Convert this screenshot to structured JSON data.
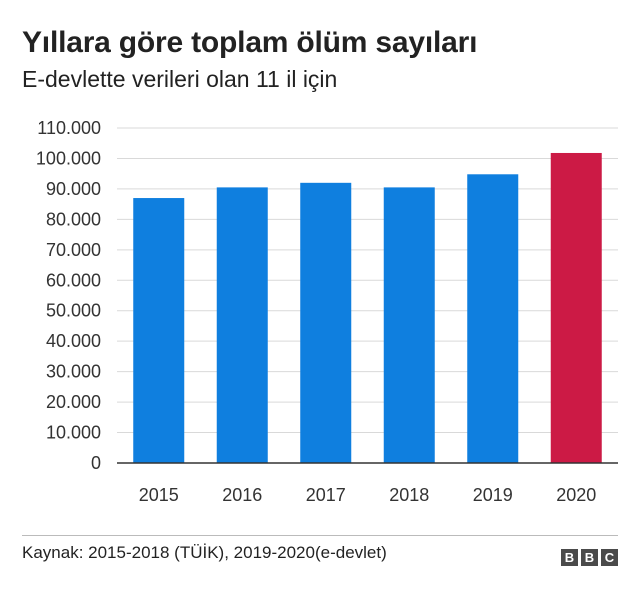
{
  "header": {
    "title": "Yıllara göre toplam ölüm sayıları",
    "subtitle": "E-devlette verileri olan 11 il için"
  },
  "chart_data": {
    "type": "bar",
    "categories": [
      "2015",
      "2016",
      "2017",
      "2018",
      "2019",
      "2020"
    ],
    "values": [
      87000,
      90500,
      92000,
      90500,
      94800,
      101800
    ],
    "ylim": [
      0,
      110000
    ],
    "yticks": [
      0,
      10000,
      20000,
      30000,
      40000,
      50000,
      60000,
      70000,
      80000,
      90000,
      100000,
      110000
    ],
    "ytick_labels": [
      "0",
      "10.000",
      "20.000",
      "30.000",
      "40.000",
      "50.000",
      "60.000",
      "70.000",
      "80.000",
      "90.000",
      "100.000",
      "110.000"
    ],
    "grid": true,
    "colors": {
      "default": "#0f7fdf",
      "highlight": "#cc1a45",
      "grid": "#d9d9d9",
      "axis": "#333333"
    },
    "highlight_index": 5
  },
  "footer": {
    "source": "Kaynak: 2015-2018 (TÜİK), 2019-2020(e-devlet)",
    "logo_letters": [
      "B",
      "B",
      "C"
    ]
  }
}
